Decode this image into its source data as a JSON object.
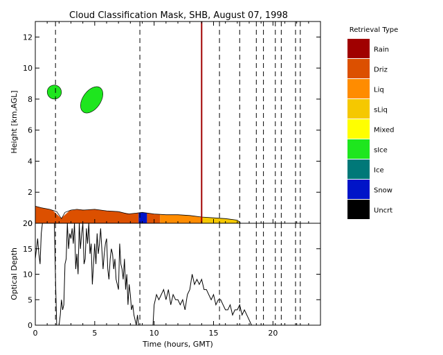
{
  "chart_data": [
    {
      "type": "heatmap",
      "title": "Cloud Classification Mask, SHB, August 07, 1998",
      "xlabel": "",
      "ylabel": "Height [km,AGL]",
      "xlim": [
        0,
        24
      ],
      "ylim": [
        0,
        13
      ],
      "x_ticks": [
        0,
        5,
        10,
        15,
        20
      ],
      "y_ticks": [
        0,
        2,
        4,
        6,
        8,
        10,
        12
      ],
      "y_tick_labels": [
        "0",
        "2",
        "4",
        "6",
        "8",
        "10",
        "12"
      ],
      "x_tick_labels": [
        "0",
        "5",
        "10",
        "15",
        "20"
      ],
      "gap_lines_hours": [
        1.7,
        8.8,
        15.5,
        17.2,
        18.6,
        19.2,
        20.2,
        20.7,
        21.9,
        22.3
      ],
      "legend": {
        "title": "Retrieval Type",
        "placement": "right",
        "entries": [
          {
            "label": "Rain",
            "color": "#a00000"
          },
          {
            "label": "Driz",
            "color": "#dc5000"
          },
          {
            "label": "Liq",
            "color": "#ff8c00"
          },
          {
            "label": "sLiq",
            "color": "#f5c800"
          },
          {
            "label": "Mixed",
            "color": "#ffff00"
          },
          {
            "label": "sIce",
            "color": "#1ee61e"
          },
          {
            "label": "Ice",
            "color": "#007878"
          },
          {
            "label": "Snow",
            "color": "#0014c8"
          },
          {
            "label": "Uncrt",
            "color": "#000000"
          }
        ]
      },
      "low_cloud_top_km": [
        [
          0,
          1.1
        ],
        [
          0.5,
          1.0
        ],
        [
          1.2,
          0.9
        ],
        [
          1.8,
          0.75
        ],
        [
          2.2,
          0.3
        ],
        [
          2.5,
          0.7
        ],
        [
          3.0,
          0.85
        ],
        [
          3.5,
          0.9
        ],
        [
          4.0,
          0.85
        ],
        [
          5.0,
          0.9
        ],
        [
          6.0,
          0.8
        ],
        [
          7.0,
          0.75
        ],
        [
          7.8,
          0.6
        ],
        [
          8.5,
          0.65
        ],
        [
          9.0,
          0.7
        ],
        [
          10.0,
          0.6
        ],
        [
          11.0,
          0.55
        ],
        [
          12.0,
          0.55
        ],
        [
          13.0,
          0.5
        ],
        [
          14.0,
          0.4
        ],
        [
          15.0,
          0.35
        ],
        [
          16.0,
          0.3
        ],
        [
          17.0,
          0.2
        ],
        [
          17.3,
          0
        ]
      ],
      "class_spans_hours": [
        {
          "start": 0,
          "end": 8.7,
          "class": "Driz"
        },
        {
          "start": 8.7,
          "end": 9.4,
          "class": "Snow"
        },
        {
          "start": 9.4,
          "end": 10.5,
          "class": "Driz"
        },
        {
          "start": 10.5,
          "end": 14.0,
          "class": "Liq"
        },
        {
          "start": 14.0,
          "end": 17.2,
          "class": "sLiq"
        }
      ],
      "ice_patches": [
        {
          "x": [
            1.0,
            2.2
          ],
          "y": [
            8.0,
            8.9
          ],
          "class": "sIce"
        },
        {
          "x": [
            4.0,
            5.5
          ],
          "y": [
            7.0,
            8.9
          ],
          "class": "sIce"
        }
      ],
      "rain_column": {
        "x": 14.0,
        "y": [
          0,
          13
        ],
        "class": "Rain"
      }
    },
    {
      "type": "line",
      "title": "",
      "xlabel": "Time (hours, GMT)",
      "ylabel": "Optical Depth",
      "xlim": [
        0,
        24
      ],
      "ylim": [
        0,
        20
      ],
      "x_ticks": [
        0,
        5,
        10,
        15,
        20
      ],
      "y_ticks": [
        0,
        5,
        10,
        15,
        20
      ],
      "y_tick_labels": [
        "0",
        "5",
        "10",
        "15",
        "20"
      ],
      "x_tick_labels": [
        "0",
        "5",
        "10",
        "15",
        "20"
      ],
      "gap_lines_hours": [
        1.7,
        8.8,
        15.5,
        17.2,
        18.6,
        19.2,
        20.2,
        20.7,
        21.9,
        22.3
      ],
      "series": [
        {
          "x": [
            0.0,
            0.1,
            0.2,
            0.3,
            0.4,
            0.5,
            0.6,
            0.7,
            0.8,
            0.9,
            1.0,
            1.1,
            1.2,
            1.3,
            1.4,
            1.5,
            1.6,
            1.7,
            1.8,
            1.9,
            2.0,
            2.1,
            2.2,
            2.3,
            2.4,
            2.5,
            2.6,
            2.7,
            2.8,
            2.9,
            3.0,
            3.1,
            3.2,
            3.3,
            3.4,
            3.5,
            3.6,
            3.7,
            3.8,
            3.9,
            4.0,
            4.1,
            4.2,
            4.3,
            4.4,
            4.5,
            4.6,
            4.7,
            4.8,
            4.9,
            5.0,
            5.1,
            5.2,
            5.3,
            5.4,
            5.5,
            5.6,
            5.7,
            5.8,
            5.9,
            6.0,
            6.1,
            6.2,
            6.3,
            6.4,
            6.5,
            6.6,
            6.7,
            6.8,
            6.9,
            7.0,
            7.1,
            7.2,
            7.3,
            7.4,
            7.5,
            7.6,
            7.7,
            7.8,
            7.9,
            8.0,
            8.1,
            8.2,
            8.3,
            8.4,
            8.5,
            8.6,
            8.7,
            8.8,
            8.9,
            9.0,
            9.1,
            9.2,
            9.3,
            9.4,
            9.5,
            9.6,
            9.7,
            9.8,
            9.9,
            10.0,
            10.2,
            10.4,
            10.6,
            10.8,
            11.0,
            11.2,
            11.4,
            11.6,
            11.8,
            12.0,
            12.2,
            12.4,
            12.6,
            12.8,
            13.0,
            13.2,
            13.4,
            13.6,
            13.8,
            14.0,
            14.2,
            14.4,
            14.6,
            14.8,
            15.0,
            15.2,
            15.4,
            15.6,
            15.8,
            16.0,
            16.2,
            16.4,
            16.6,
            16.8,
            17.0,
            17.2,
            17.4,
            17.6,
            17.8,
            18.0,
            18.2
          ],
          "y": [
            13,
            15,
            17,
            14,
            12,
            18,
            20,
            20,
            20,
            20,
            20,
            20,
            20,
            20,
            20,
            20,
            20,
            9,
            0,
            0,
            0,
            2,
            5,
            3,
            4,
            12,
            13,
            20,
            15,
            18,
            17,
            19,
            16,
            20,
            11,
            14,
            10,
            20,
            15,
            18,
            20,
            12,
            13,
            19,
            16,
            20,
            14,
            16,
            8,
            12,
            16,
            12,
            18,
            14,
            16,
            19,
            15,
            11,
            14,
            16,
            17,
            11,
            9,
            13,
            15,
            14,
            11,
            13,
            9,
            8,
            7,
            16,
            12,
            11,
            9,
            13,
            7,
            10,
            4,
            8,
            6,
            3,
            4,
            2,
            1,
            0,
            2,
            0,
            0,
            0,
            0,
            0,
            0,
            0,
            0,
            0,
            0,
            0,
            0,
            0,
            4,
            6,
            5,
            6,
            7,
            5,
            7,
            4,
            6,
            5,
            5,
            4,
            5,
            3,
            6,
            7,
            10,
            8,
            9,
            8,
            9,
            7,
            7,
            6,
            5,
            6,
            4,
            5,
            5,
            4,
            3,
            3,
            4,
            2,
            3,
            3,
            4,
            2,
            3,
            2,
            1,
            0
          ]
        }
      ]
    }
  ]
}
